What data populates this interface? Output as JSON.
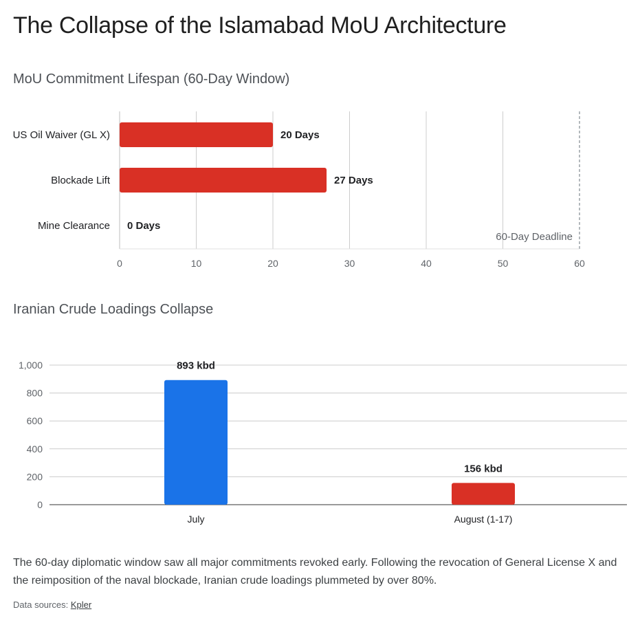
{
  "page_title": "The Collapse of the Islamabad MoU Architecture",
  "note": "The 60-day diplomatic window saw all major commitments revoked early. Following the revocation of General License X and the reimposition of the naval blockade, Iranian crude loadings plummeted by over 80%.",
  "sources": {
    "label": "Data sources:",
    "link": "Kpler"
  },
  "colors": {
    "red": "#d93025",
    "blue": "#1a73e8",
    "grid": "#cccccc"
  },
  "chart_data": [
    {
      "type": "bar",
      "orientation": "horizontal",
      "title": "MoU Commitment Lifespan (60-Day Window)",
      "categories": [
        "US Oil Waiver (GL X)",
        "Blockade Lift",
        "Mine Clearance"
      ],
      "values": [
        20,
        27,
        0
      ],
      "data_labels": [
        "20 Days",
        "27 Days",
        "0 Days"
      ],
      "xlim": [
        0,
        60
      ],
      "xticks": [
        0,
        10,
        20,
        30,
        40,
        50,
        60
      ],
      "reference_line": {
        "x": 60,
        "label": "60-Day Deadline"
      },
      "grid": true,
      "color": "#d93025"
    },
    {
      "type": "bar",
      "orientation": "vertical",
      "title": "Iranian Crude Loadings Collapse",
      "categories": [
        "July",
        "August (1-17)"
      ],
      "values": [
        893,
        156
      ],
      "data_labels": [
        "893 kbd",
        "156 kbd"
      ],
      "colors": [
        "#1a73e8",
        "#d93025"
      ],
      "ylim": [
        0,
        1000
      ],
      "yticks": [
        0,
        200,
        400,
        600,
        800,
        1000
      ],
      "ytick_labels": [
        "0",
        "200",
        "400",
        "600",
        "800",
        "1,000"
      ],
      "grid": true
    }
  ]
}
